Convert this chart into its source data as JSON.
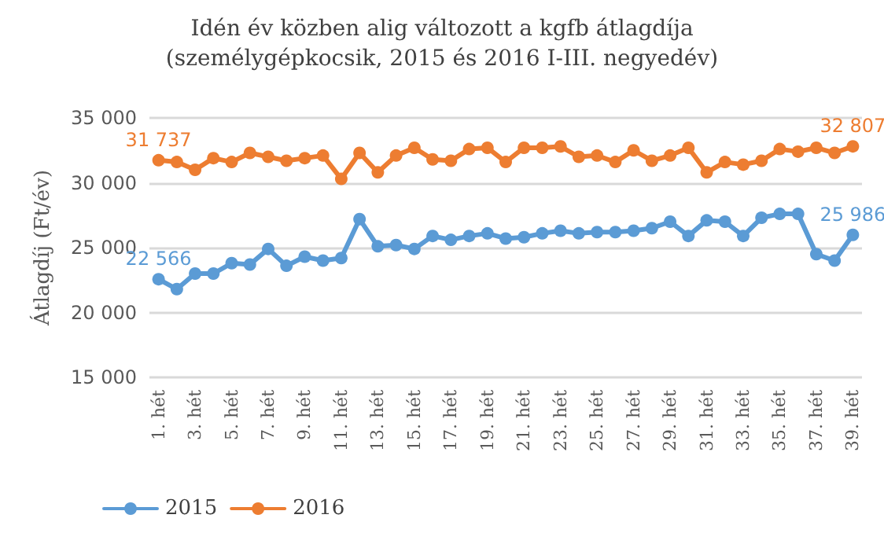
{
  "chart_data": {
    "type": "line",
    "title": "Idén év közben alig változott a kgfb átlagdíja\n(személygépkocsik, 2015 és 2016 I-III. negyedév)",
    "ylabel": "Átlagdíj (Ft/év)",
    "categories": [
      "1. hét",
      null,
      "3. hét",
      null,
      "5. hét",
      null,
      "7. hét",
      null,
      "9. hét",
      null,
      "11. hét",
      null,
      "13. hét",
      null,
      "15. hét",
      null,
      "17. hét",
      null,
      "19. hét",
      null,
      "21. hét",
      null,
      "23. hét",
      null,
      "25. hét",
      null,
      "27. hét",
      null,
      "29. hét",
      null,
      "31. hét",
      null,
      "33. hét",
      null,
      "35. hét",
      null,
      "37. hét",
      null,
      "39. hét"
    ],
    "series": [
      {
        "name": "2015",
        "color": "#5b9bd5",
        "values": [
          22566,
          21800,
          23000,
          23000,
          23800,
          23700,
          24900,
          23600,
          24300,
          24000,
          24200,
          27200,
          25100,
          25200,
          24900,
          25900,
          25600,
          25900,
          26100,
          25700,
          25800,
          26100,
          26300,
          26100,
          26200,
          26200,
          26300,
          26500,
          27000,
          25900,
          27100,
          27000,
          25900,
          27300,
          27600,
          27600,
          24500,
          24000,
          25986
        ],
        "value_labels": [
          "22 566",
          null,
          null,
          null,
          null,
          null,
          null,
          null,
          null,
          null,
          null,
          null,
          null,
          null,
          null,
          null,
          null,
          null,
          null,
          null,
          null,
          null,
          null,
          null,
          null,
          null,
          null,
          null,
          null,
          null,
          null,
          null,
          null,
          null,
          null,
          null,
          null,
          null,
          "25 986"
        ]
      },
      {
        "name": "2016",
        "color": "#ed7d31",
        "values": [
          31737,
          31600,
          31000,
          31900,
          31600,
          32300,
          32000,
          31700,
          31900,
          32100,
          30300,
          32300,
          30800,
          32100,
          32700,
          31800,
          31700,
          32600,
          32700,
          31600,
          32700,
          32700,
          32800,
          32000,
          32100,
          31600,
          32500,
          31700,
          32100,
          32700,
          30800,
          31600,
          31400,
          31700,
          32600,
          32400,
          32700,
          32300,
          32807
        ],
        "value_labels": [
          "31 737",
          null,
          null,
          null,
          null,
          null,
          null,
          null,
          null,
          null,
          null,
          null,
          null,
          null,
          null,
          null,
          null,
          null,
          null,
          null,
          null,
          null,
          null,
          null,
          null,
          null,
          null,
          null,
          null,
          null,
          null,
          null,
          null,
          null,
          null,
          null,
          null,
          null,
          "32 807"
        ]
      }
    ],
    "ylim": [
      15000,
      35000
    ],
    "yticks": [
      {
        "value": 15000,
        "label": "15 000"
      },
      {
        "value": 20000,
        "label": "20 000"
      },
      {
        "value": 25000,
        "label": "25 000"
      },
      {
        "value": 30000,
        "label": "30 000"
      },
      {
        "value": 35000,
        "label": "35 000"
      }
    ],
    "grid": "y",
    "legend": "bottom left",
    "marker": "circle",
    "line_style": "solid"
  }
}
